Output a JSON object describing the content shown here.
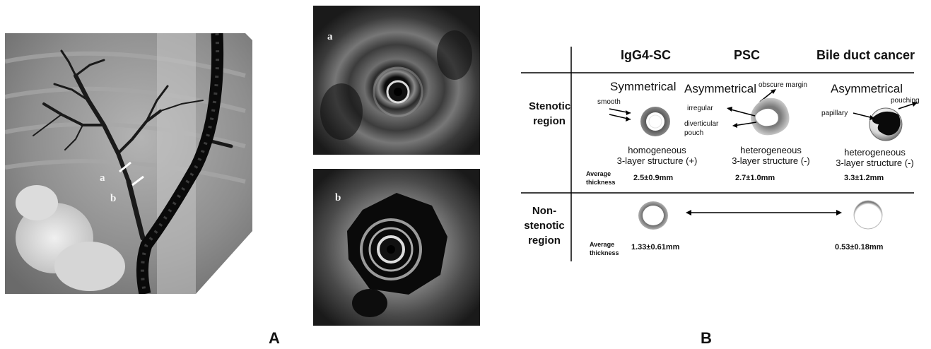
{
  "panels": {
    "A": {
      "label": "A",
      "xray_labels": {
        "a": "a",
        "b": "b"
      },
      "eus_top_label": "a",
      "eus_bottom_label": "b"
    },
    "B": {
      "label": "B",
      "columns": [
        "IgG4-SC",
        "PSC",
        "Bile duct cancer"
      ],
      "rows": {
        "stenotic": "Stenotic region",
        "nonstenotic_line1": "Non-",
        "nonstenotic_line2": "stenotic",
        "nonstenotic_line3": "region"
      },
      "igg4": {
        "symmetry": "Symmetrical",
        "feature_smooth": "smooth",
        "desc_line1": "homogeneous",
        "desc_line2": "3-layer structure (+)",
        "stenotic_thickness": "2.5±0.9mm",
        "nonstenotic_thickness": "1.33±0.61mm"
      },
      "psc": {
        "symmetry": "Asymmetrical",
        "feature_obscure": "obscure margin",
        "feature_irregular": "irregular",
        "feature_divert_1": "diverticular",
        "feature_divert_2": "pouch",
        "desc_line1": "heterogeneous",
        "desc_line2": "3-layer structure (-)",
        "stenotic_thickness": "2.7±1.0mm"
      },
      "cancer": {
        "symmetry": "Asymmetrical",
        "feature_pouching": "pouching",
        "feature_papillary": "papillary",
        "desc_line1": "heterogeneous",
        "desc_line2": "3-layer structure (-)",
        "stenotic_thickness": "3.3±1.2mm",
        "nonstenotic_thickness": "0.53±0.18mm"
      },
      "avg_label_line1": "Average",
      "avg_label_line2": "thickness"
    }
  }
}
